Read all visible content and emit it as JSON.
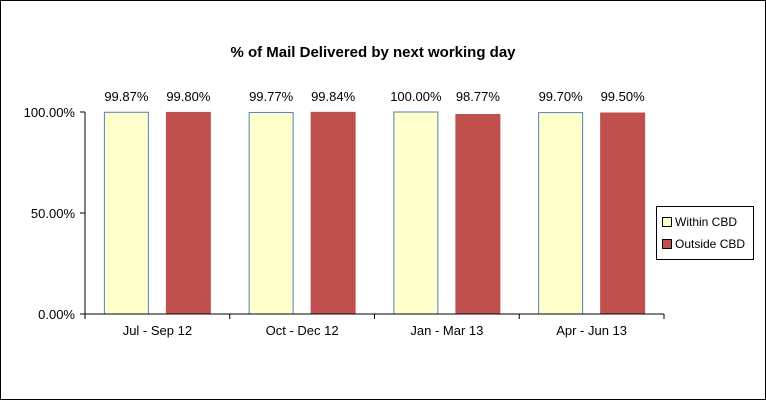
{
  "chart_data": {
    "type": "bar",
    "title": "% of Mail Delivered by next working day",
    "xlabel": "",
    "ylabel": "",
    "categories": [
      "Jul - Sep 12",
      "Oct - Dec 12",
      "Jan - Mar 13",
      "Apr - Jun 13"
    ],
    "series": [
      {
        "name": "Within CBD",
        "values": [
          99.87,
          99.77,
          100.0,
          99.7
        ],
        "labels": [
          "99.87%",
          "99.77%",
          "100.00%",
          "99.70%"
        ],
        "color": "#FFFFCC",
        "stroke": "#4F81BD"
      },
      {
        "name": "Outside CBD",
        "values": [
          99.8,
          99.84,
          98.77,
          99.5
        ],
        "labels": [
          "99.80%",
          "99.84%",
          "98.77%",
          "99.50%"
        ],
        "color": "#C0504D",
        "stroke": "#C0504D"
      }
    ],
    "ylim": [
      0,
      100
    ],
    "yticks": [
      {
        "value": 0,
        "label": "0.00%"
      },
      {
        "value": 50,
        "label": "50.00%"
      },
      {
        "value": 100,
        "label": "100.00%"
      }
    ],
    "grid": false,
    "legend_position": "right"
  }
}
